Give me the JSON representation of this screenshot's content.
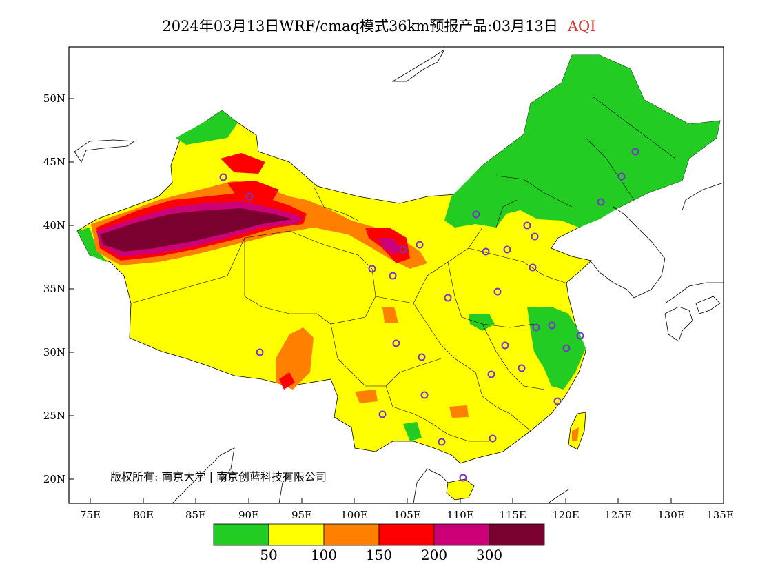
{
  "title": {
    "main": "2024年03月13日WRF/cmaq模式36km预报产品:03月13日",
    "variable": "AQI"
  },
  "map": {
    "lat_labels": [
      "50N",
      "45N",
      "40N",
      "35N",
      "30N",
      "25N",
      "20N"
    ],
    "lon_labels": [
      "75E",
      "80E",
      "85E",
      "90E",
      "95E",
      "100E",
      "105E",
      "110E",
      "115E",
      "120E",
      "125E",
      "130E",
      "135E"
    ],
    "lon_range": [
      73,
      135
    ],
    "lat_range": [
      18,
      54
    ],
    "copyright": "版权所有: 南京大学 | 南京创蓝科技有限公司"
  },
  "legend": {
    "colors": [
      "#22cc22",
      "#ffff00",
      "#ff8000",
      "#ff0000",
      "#cc0077",
      "#7a0030"
    ],
    "labels": [
      "50",
      "100",
      "150",
      "200",
      "300"
    ]
  },
  "colors": {
    "good": "#22cc22",
    "moderate": "#ffff00",
    "sensitive": "#ff8000",
    "unhealthy": "#ff0000",
    "very_unhealthy": "#cc0077",
    "hazardous": "#7a0030",
    "station_marker": "#7733cc"
  },
  "station_markers_count": 33
}
